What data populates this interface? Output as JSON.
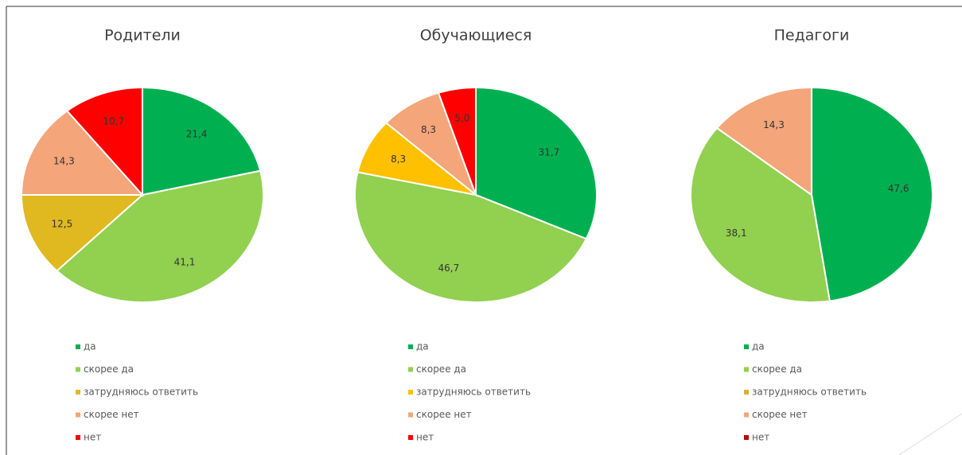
{
  "chart_data": [
    {
      "type": "pie",
      "title": "Родители",
      "categories": [
        "да",
        "скорее да",
        "затрудняюсь ответить",
        "скорее нет",
        "нет"
      ],
      "values": [
        21.4,
        41.1,
        12.5,
        14.3,
        10.7
      ],
      "value_labels": [
        "21,4",
        "41,1",
        "12,5",
        "14,3",
        "10,7"
      ],
      "colors": [
        "#00b050",
        "#92d050",
        "#e0b820",
        "#f4a57a",
        "#ff0000"
      ]
    },
    {
      "type": "pie",
      "title": "Обучающиеся",
      "categories": [
        "да",
        "скорее да",
        "затрудняюсь ответить",
        "скорее нет",
        "нет"
      ],
      "values": [
        31.7,
        46.7,
        8.3,
        8.3,
        5.0
      ],
      "value_labels": [
        "31,7",
        "46,7",
        "8,3",
        "8,3",
        "5,0"
      ],
      "colors": [
        "#00b050",
        "#92d050",
        "#ffc000",
        "#f4a57a",
        "#ff0000"
      ]
    },
    {
      "type": "pie",
      "title": "Педагоги",
      "categories": [
        "да",
        "скорее да",
        "затрудняюсь ответить",
        "скорее нет",
        "нет"
      ],
      "values": [
        47.6,
        38.1,
        null,
        14.3,
        null
      ],
      "value_labels": [
        "47,6",
        "38,1",
        null,
        "14,3",
        null
      ],
      "colors": [
        "#00b050",
        "#92d050",
        "#d9b030",
        "#f4a57a",
        "#c00000"
      ]
    }
  ]
}
